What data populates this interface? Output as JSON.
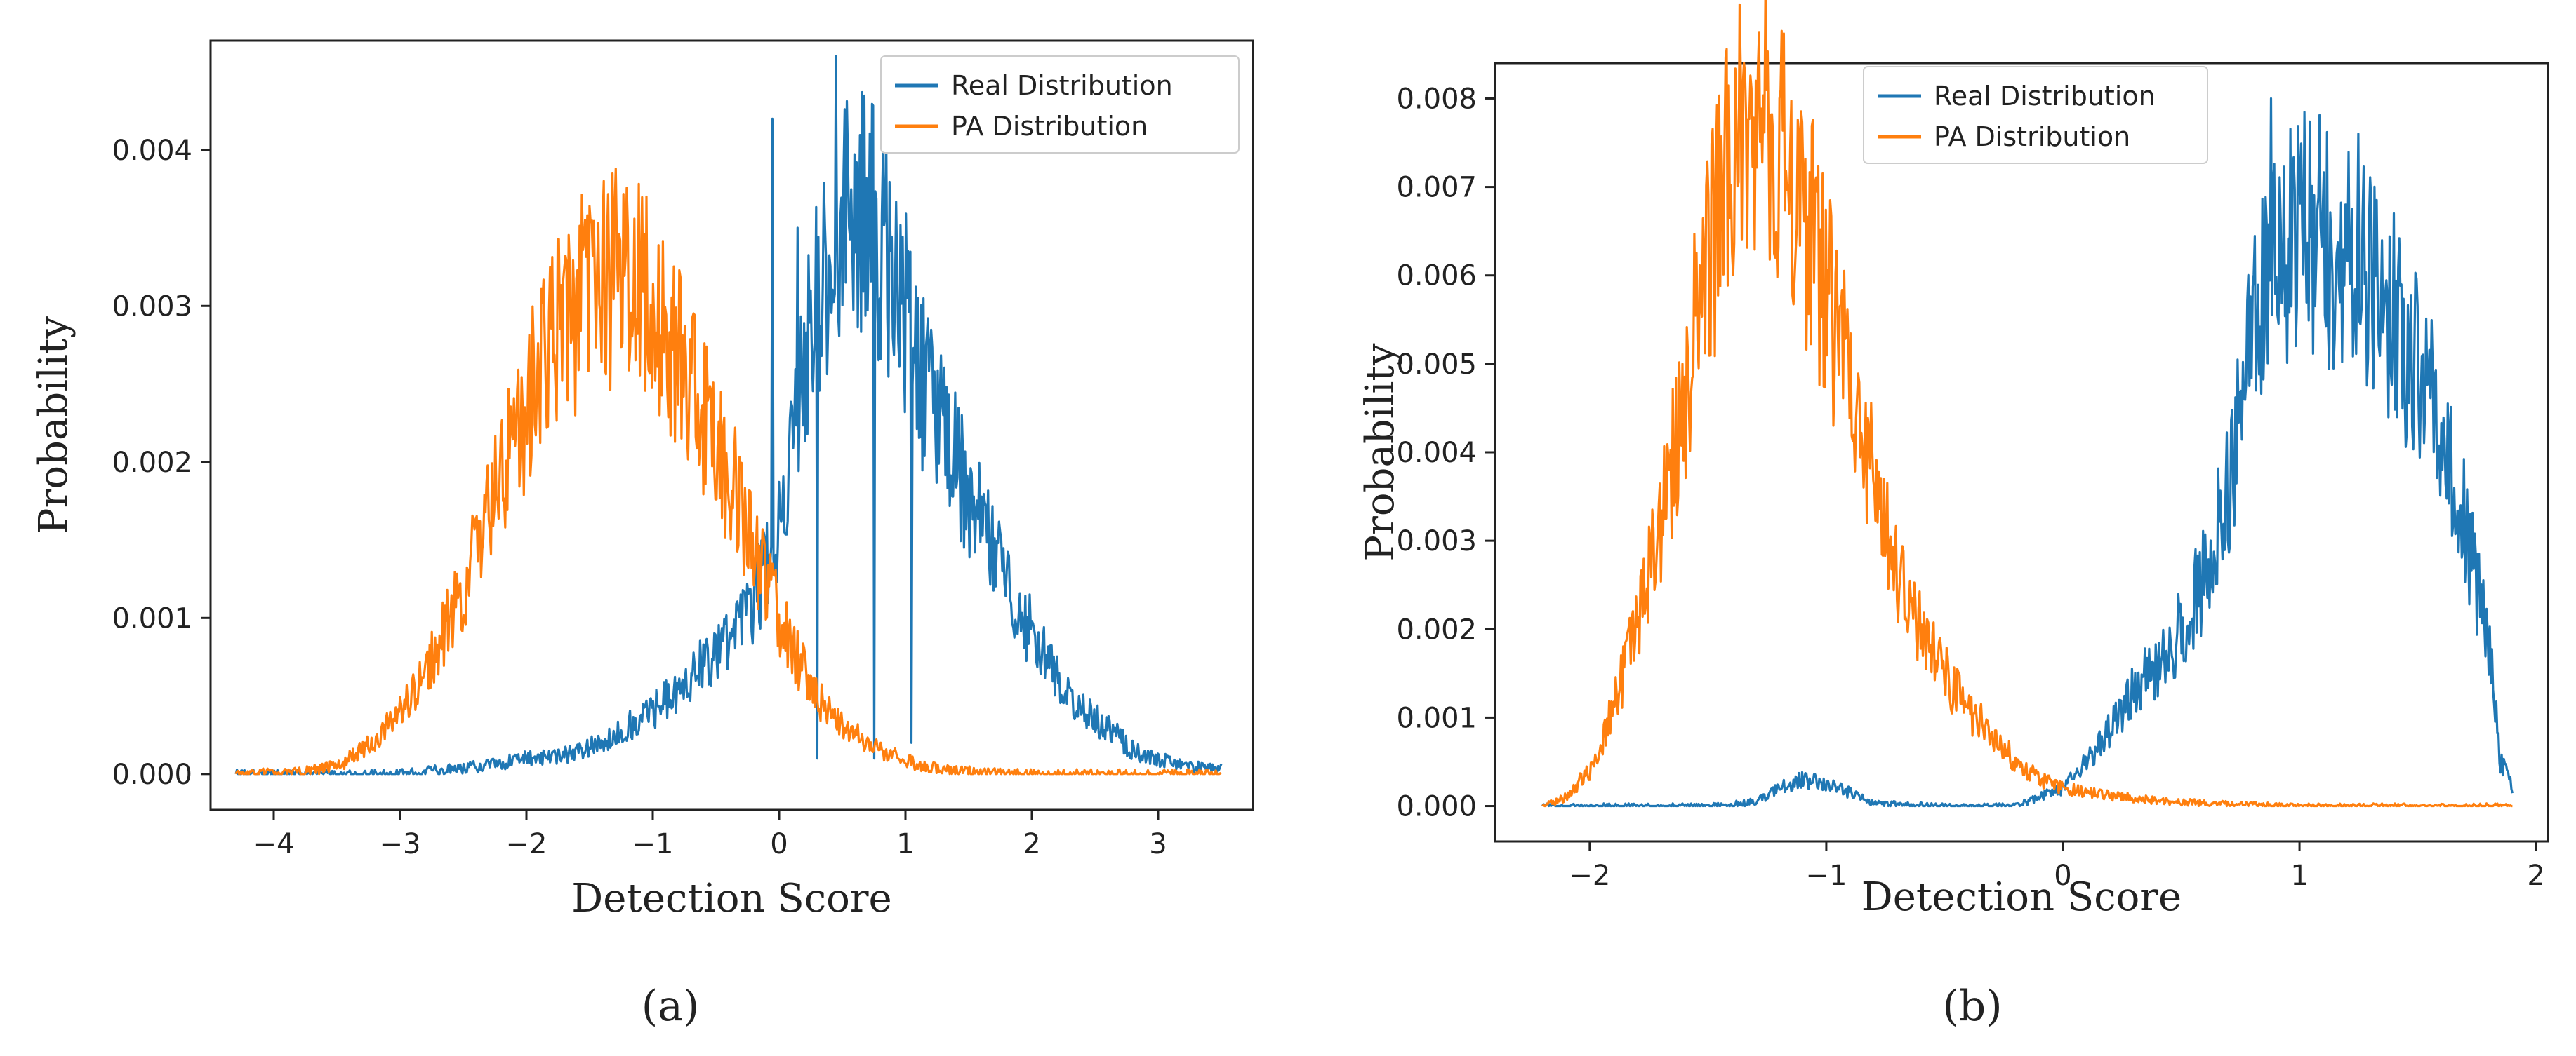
{
  "chart_data": [
    {
      "type": "line",
      "caption": "(a)",
      "xlabel": "Detection Score",
      "ylabel": "Probability",
      "xlim": [
        -4.5,
        3.75
      ],
      "ylim": [
        -0.00023,
        0.0047
      ],
      "xticks": [
        -4,
        -3,
        -2,
        -1,
        0,
        1,
        2,
        3
      ],
      "xtick_labels": [
        "−4",
        "−3",
        "−2",
        "−1",
        "0",
        "1",
        "2",
        "3"
      ],
      "yticks": [
        0.0,
        0.001,
        0.002,
        0.003,
        0.004
      ],
      "ytick_labels": [
        "0.000",
        "0.001",
        "0.002",
        "0.003",
        "0.004"
      ],
      "legend_position": "top-right",
      "series": [
        {
          "name": "Real Distribution",
          "color": "#1f77b4",
          "x": [
            -4.3,
            -3.5,
            -3.0,
            -2.6,
            -2.3,
            -2.0,
            -1.7,
            -1.4,
            -1.2,
            -1.0,
            -0.8,
            -0.6,
            -0.4,
            -0.2,
            0.0,
            0.1,
            0.2,
            0.3,
            0.4,
            0.5,
            0.6,
            0.7,
            0.8,
            0.9,
            1.0,
            1.1,
            1.2,
            1.4,
            1.6,
            1.8,
            2.0,
            2.2,
            2.4,
            2.6,
            2.8,
            3.0,
            3.2,
            3.5
          ],
          "y": [
            0.0,
            0.0,
            0.0,
            3e-05,
            6e-05,
            0.0001,
            0.00012,
            0.0002,
            0.0003,
            0.0004,
            0.00055,
            0.0007,
            0.00085,
            0.0011,
            0.0016,
            0.0022,
            0.0027,
            0.003,
            0.0033,
            0.0036,
            0.0035,
            0.0037,
            0.0034,
            0.0032,
            0.003,
            0.0026,
            0.0024,
            0.002,
            0.0016,
            0.0012,
            0.0009,
            0.0006,
            0.0004,
            0.0003,
            0.00015,
            0.0001,
            5e-05,
            3e-05
          ],
          "spikes": [
            [
              -0.05,
              0.0042
            ],
            [
              0.45,
              0.0046
            ],
            [
              0.15,
              0.0035
            ],
            [
              0.3,
              0.0001
            ],
            [
              0.75,
              0.0001
            ],
            [
              0.85,
              0.0041
            ],
            [
              1.05,
              0.0002
            ]
          ]
        },
        {
          "name": "PA Distribution",
          "color": "#ff7f0e",
          "x": [
            -4.3,
            -3.8,
            -3.5,
            -3.3,
            -3.1,
            -2.9,
            -2.7,
            -2.5,
            -2.3,
            -2.1,
            -1.9,
            -1.7,
            -1.5,
            -1.3,
            -1.1,
            -0.9,
            -0.7,
            -0.5,
            -0.3,
            -0.1,
            0.1,
            0.3,
            0.5,
            0.7,
            0.9,
            1.1,
            1.3,
            1.6,
            2.0,
            2.5,
            3.5
          ],
          "y": [
            0.0,
            1e-05,
            5e-05,
            0.00015,
            0.0003,
            0.0005,
            0.0008,
            0.0012,
            0.0017,
            0.0021,
            0.0026,
            0.0029,
            0.0031,
            0.0032,
            0.0031,
            0.0028,
            0.0025,
            0.0021,
            0.0017,
            0.0012,
            0.0008,
            0.0005,
            0.0003,
            0.0002,
            0.00012,
            6e-05,
            3e-05,
            1e-05,
            0.0,
            0.0,
            0.0
          ],
          "spikes": [
            [
              -1.05,
              0.0037
            ],
            [
              -1.2,
              0.0035
            ]
          ]
        }
      ]
    },
    {
      "type": "line",
      "caption": "(b)",
      "xlabel": "Detection Score",
      "ylabel": "Probability",
      "xlim": [
        -2.4,
        2.05
      ],
      "ylim": [
        -0.0004,
        0.0084
      ],
      "xticks": [
        -2,
        -1,
        0,
        1,
        2
      ],
      "xtick_labels": [
        "−2",
        "−1",
        "0",
        "1",
        "2"
      ],
      "yticks": [
        0.0,
        0.001,
        0.002,
        0.003,
        0.004,
        0.005,
        0.006,
        0.007,
        0.008
      ],
      "ytick_labels": [
        "0.000",
        "0.001",
        "0.002",
        "0.003",
        "0.004",
        "0.005",
        "0.006",
        "0.007",
        "0.008"
      ],
      "legend_position": "top-center",
      "series": [
        {
          "name": "Real Distribution",
          "color": "#1f77b4",
          "x": [
            -2.2,
            -1.5,
            -1.3,
            -1.2,
            -1.1,
            -1.0,
            -0.9,
            -0.8,
            -0.5,
            -0.2,
            0.0,
            0.1,
            0.2,
            0.3,
            0.4,
            0.5,
            0.6,
            0.7,
            0.8,
            0.9,
            1.0,
            1.1,
            1.2,
            1.3,
            1.4,
            1.5,
            1.6,
            1.7,
            1.8,
            1.85,
            1.9
          ],
          "y": [
            0.0,
            0.0,
            5e-05,
            0.0002,
            0.0003,
            0.00025,
            0.00015,
            3e-05,
            0.0,
            0.0,
            0.0002,
            0.0005,
            0.0009,
            0.0013,
            0.0016,
            0.002,
            0.0026,
            0.0036,
            0.0052,
            0.0062,
            0.0065,
            0.0064,
            0.0063,
            0.006,
            0.0055,
            0.0049,
            0.0042,
            0.0032,
            0.0018,
            0.0005,
            0.0002
          ],
          "spikes": [
            [
              0.88,
              0.008
            ],
            [
              1.25,
              0.0076
            ],
            [
              1.4,
              0.0067
            ],
            [
              1.2,
              0.0068
            ]
          ]
        },
        {
          "name": "PA Distribution",
          "color": "#ff7f0e",
          "x": [
            -2.2,
            -2.1,
            -2.0,
            -1.9,
            -1.8,
            -1.7,
            -1.6,
            -1.5,
            -1.4,
            -1.3,
            -1.2,
            -1.1,
            -1.0,
            -0.9,
            -0.8,
            -0.7,
            -0.6,
            -0.5,
            -0.4,
            -0.3,
            -0.2,
            -0.1,
            0.0,
            0.2,
            0.4,
            0.7,
            1.0,
            1.5,
            1.9
          ],
          "y": [
            0.0,
            0.0001,
            0.0004,
            0.0011,
            0.002,
            0.0032,
            0.0046,
            0.0062,
            0.0073,
            0.0077,
            0.0075,
            0.0068,
            0.0058,
            0.0047,
            0.0036,
            0.0027,
            0.002,
            0.0015,
            0.0011,
            0.0008,
            0.0005,
            0.0003,
            0.0002,
            0.00012,
            6e-05,
            2e-05,
            0.0,
            0.0,
            0.0
          ],
          "spikes": [
            [
              -1.3,
              0.0082
            ],
            [
              -1.2,
              0.008
            ]
          ]
        }
      ]
    }
  ]
}
